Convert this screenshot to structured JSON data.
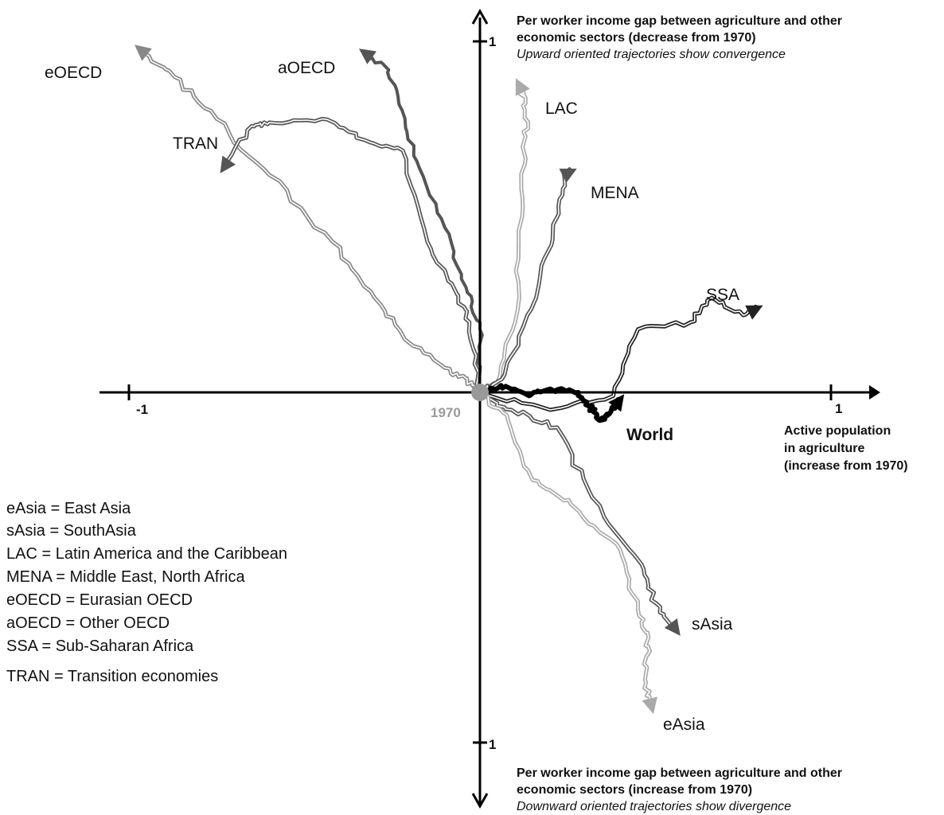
{
  "chart_data": {
    "type": "line",
    "origin_label": "1970",
    "x_axis": {
      "range": [
        -1,
        1
      ],
      "tick_labels": [
        "-1",
        "1"
      ],
      "label_lines": [
        "Active population",
        "in agriculture",
        "(increase from 1970)"
      ]
    },
    "y_axis": {
      "range": [
        -1,
        1
      ],
      "tick_labels_top": "1",
      "tick_labels_bottom": "1",
      "top_label_lines": [
        "Per worker income gap between agriculture and other",
        "economic sectors (decrease from 1970)"
      ],
      "top_note": "Upward oriented trajectories show convergence",
      "bottom_label_lines": [
        "Per worker income gap between agriculture and other",
        "economic sectors (increase from 1970)"
      ],
      "bottom_note": "Downward oriented trajectories show divergence"
    },
    "grid": false,
    "series": [
      {
        "name": "eOECD",
        "color": "#888888",
        "style": "double",
        "points": [
          [
            0,
            0
          ],
          [
            -0.04,
            0.04
          ],
          [
            -0.1,
            0.07
          ],
          [
            -0.2,
            0.14
          ],
          [
            -0.3,
            0.27
          ],
          [
            -0.42,
            0.43
          ],
          [
            -0.6,
            0.62
          ],
          [
            -0.75,
            0.78
          ],
          [
            -0.87,
            0.9
          ],
          [
            -0.97,
            0.98
          ]
        ]
      },
      {
        "name": "TRAN",
        "color": "#555555",
        "style": "double",
        "points": [
          [
            0,
            0
          ],
          [
            -0.03,
            0.2
          ],
          [
            -0.08,
            0.31
          ],
          [
            -0.15,
            0.43
          ],
          [
            -0.22,
            0.69
          ],
          [
            -0.33,
            0.72
          ],
          [
            -0.45,
            0.78
          ],
          [
            -0.6,
            0.77
          ],
          [
            -0.65,
            0.76
          ],
          [
            -0.73,
            0.64
          ]
        ]
      },
      {
        "name": "aOECD",
        "color": "#555555",
        "style": "thick",
        "points": [
          [
            0,
            0
          ],
          [
            0.0,
            0.18
          ],
          [
            -0.04,
            0.3
          ],
          [
            -0.1,
            0.47
          ],
          [
            -0.18,
            0.66
          ],
          [
            -0.23,
            0.82
          ],
          [
            -0.26,
            0.92
          ],
          [
            -0.33,
            0.97
          ]
        ]
      },
      {
        "name": "LAC",
        "color": "#aaaaaa",
        "style": "double",
        "points": [
          [
            0,
            0
          ],
          [
            0.05,
            0.03
          ],
          [
            0.1,
            0.2
          ],
          [
            0.12,
            0.5
          ],
          [
            0.13,
            0.73
          ],
          [
            0.13,
            0.84
          ],
          [
            0.11,
            0.88
          ]
        ]
      },
      {
        "name": "MENA",
        "color": "#555555",
        "style": "double",
        "points": [
          [
            0,
            0
          ],
          [
            0.07,
            0.05
          ],
          [
            0.16,
            0.27
          ],
          [
            0.22,
            0.5
          ],
          [
            0.24,
            0.62
          ],
          [
            0.26,
            0.63
          ]
        ]
      },
      {
        "name": "SSA",
        "color": "#222222",
        "style": "double",
        "points": [
          [
            0,
            0
          ],
          [
            0.2,
            -0.05
          ],
          [
            0.38,
            -0.01
          ],
          [
            0.45,
            0.18
          ],
          [
            0.6,
            0.2
          ],
          [
            0.66,
            0.27
          ],
          [
            0.75,
            0.22
          ],
          [
            0.79,
            0.24
          ]
        ]
      },
      {
        "name": "sAsia",
        "color": "#555555",
        "style": "double",
        "points": [
          [
            0,
            0
          ],
          [
            0.09,
            -0.05
          ],
          [
            0.22,
            -0.1
          ],
          [
            0.32,
            -0.3
          ],
          [
            0.46,
            -0.49
          ],
          [
            0.5,
            -0.6
          ],
          [
            0.56,
            -0.68
          ]
        ]
      },
      {
        "name": "eAsia",
        "color": "#aaaaaa",
        "style": "double",
        "points": [
          [
            0,
            0
          ],
          [
            0.08,
            -0.08
          ],
          [
            0.15,
            -0.25
          ],
          [
            0.26,
            -0.32
          ],
          [
            0.4,
            -0.45
          ],
          [
            0.45,
            -0.62
          ],
          [
            0.48,
            -0.7
          ],
          [
            0.47,
            -0.82
          ],
          [
            0.49,
            -0.9
          ]
        ]
      },
      {
        "name": "World",
        "color": "#000000",
        "style": "thick",
        "points": [
          [
            0,
            0
          ],
          [
            0.06,
            0.02
          ],
          [
            0.14,
            -0.01
          ],
          [
            0.2,
            0.01
          ],
          [
            0.28,
            0.0
          ],
          [
            0.31,
            -0.04
          ],
          [
            0.34,
            -0.08
          ],
          [
            0.37,
            -0.06
          ],
          [
            0.4,
            -0.02
          ]
        ]
      }
    ],
    "legend_entries": [
      "eAsia = East Asia",
      "sAsia = SouthAsia",
      "LAC = Latin America and the Caribbean",
      "MENA = Middle East, North Africa",
      "eOECD = Eurasian OECD",
      "aOECD = Other OECD",
      "SSA = Sub-Saharan Africa",
      "TRAN = Transition economies"
    ]
  }
}
